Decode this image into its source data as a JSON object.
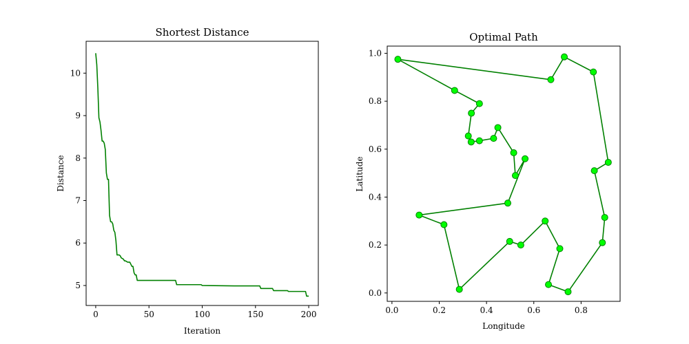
{
  "chart_data": [
    {
      "type": "line",
      "title": "Shortest Distance",
      "xlabel": "Iteration",
      "ylabel": "Distance",
      "xlim": [
        -9,
        209
      ],
      "ylim": [
        4.53,
        10.75
      ],
      "xticks": [
        0,
        50,
        100,
        150,
        200
      ],
      "yticks": [
        5,
        6,
        7,
        8,
        9,
        10
      ],
      "grid": false,
      "color": "#008000",
      "series": [
        {
          "x": [
            0,
            1,
            2,
            3,
            4,
            5,
            6,
            7,
            8,
            9,
            10,
            11,
            12,
            13,
            14,
            15,
            16,
            17,
            18,
            19,
            20,
            21,
            22,
            23,
            24,
            26,
            27,
            28,
            30,
            32,
            34,
            35,
            36,
            37,
            38,
            39,
            40,
            41,
            42,
            75,
            76,
            77,
            99,
            100,
            130,
            154,
            155,
            166,
            167,
            180,
            181,
            197,
            198,
            200
          ],
          "values": [
            10.47,
            10.2,
            9.65,
            8.95,
            8.85,
            8.65,
            8.4,
            8.4,
            8.35,
            8.2,
            7.65,
            7.5,
            7.5,
            6.65,
            6.5,
            6.5,
            6.45,
            6.3,
            6.25,
            6.05,
            5.72,
            5.72,
            5.72,
            5.7,
            5.65,
            5.62,
            5.58,
            5.58,
            5.55,
            5.55,
            5.45,
            5.45,
            5.3,
            5.25,
            5.25,
            5.12,
            5.12,
            5.12,
            5.12,
            5.12,
            5.02,
            5.02,
            5.02,
            5.0,
            4.99,
            4.99,
            4.93,
            4.93,
            4.88,
            4.88,
            4.86,
            4.86,
            4.75,
            4.75
          ]
        }
      ]
    },
    {
      "type": "line",
      "title": "Optimal Path",
      "xlabel": "Longitude",
      "ylabel": "Latitude",
      "xlim": [
        -0.02,
        0.965
      ],
      "ylim": [
        -0.035,
        1.03
      ],
      "xticks": [
        0.0,
        0.2,
        0.4,
        0.6,
        0.8
      ],
      "yticks": [
        0.0,
        0.2,
        0.4,
        0.6,
        0.8,
        1.0
      ],
      "grid": false,
      "color": "#008000",
      "marker_face": "#00ff00",
      "series": [
        {
          "x": [
            0.025,
            0.672,
            0.729,
            0.852,
            0.915,
            0.856,
            0.9,
            0.89,
            0.745,
            0.662,
            0.71,
            0.648,
            0.545,
            0.498,
            0.285,
            0.22,
            0.115,
            0.49,
            0.563,
            0.522,
            0.515,
            0.448,
            0.43,
            0.37,
            0.335,
            0.323,
            0.336,
            0.37,
            0.265,
            0.025
          ],
          "values": [
            0.975,
            0.89,
            0.985,
            0.922,
            0.545,
            0.51,
            0.315,
            0.21,
            0.005,
            0.035,
            0.185,
            0.3,
            0.2,
            0.215,
            0.015,
            0.285,
            0.325,
            0.375,
            0.56,
            0.49,
            0.585,
            0.69,
            0.645,
            0.635,
            0.63,
            0.655,
            0.75,
            0.79,
            0.845,
            0.975
          ]
        }
      ]
    }
  ]
}
